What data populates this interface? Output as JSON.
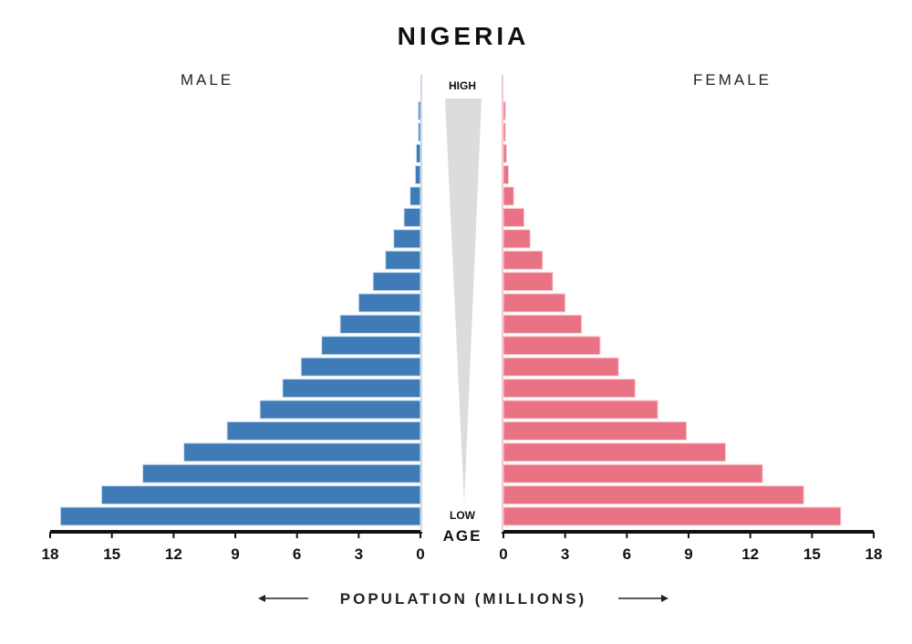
{
  "chart_data": {
    "type": "bar",
    "title": "NIGERIA",
    "left_label": "MALE",
    "right_label": "FEMALE",
    "center_top_label": "HIGH",
    "center_bottom_label": "LOW",
    "center_axis_label": "AGE",
    "xlabel": "POPULATION (MILLIONS)",
    "xlim": [
      0,
      18
    ],
    "left_ticks": [
      "18",
      "15",
      "12",
      "9",
      "6",
      "3",
      "0"
    ],
    "right_ticks": [
      "0",
      "3",
      "6",
      "9",
      "12",
      "15",
      "18"
    ],
    "order": "bottom-to-top (low age to high age)",
    "series": [
      {
        "name": "MALE",
        "color": "#3f7bb6",
        "values": [
          17.5,
          15.5,
          13.5,
          11.5,
          9.4,
          7.8,
          6.7,
          5.8,
          4.8,
          3.9,
          3.0,
          2.3,
          1.7,
          1.3,
          0.8,
          0.5,
          0.25,
          0.2,
          0.1,
          0.1
        ]
      },
      {
        "name": "FEMALE",
        "color": "#e97385",
        "values": [
          16.4,
          14.6,
          12.6,
          10.8,
          8.9,
          7.5,
          6.4,
          5.6,
          4.7,
          3.8,
          3.0,
          2.4,
          1.9,
          1.3,
          1.0,
          0.5,
          0.25,
          0.15,
          0.1,
          0.1
        ]
      }
    ]
  }
}
